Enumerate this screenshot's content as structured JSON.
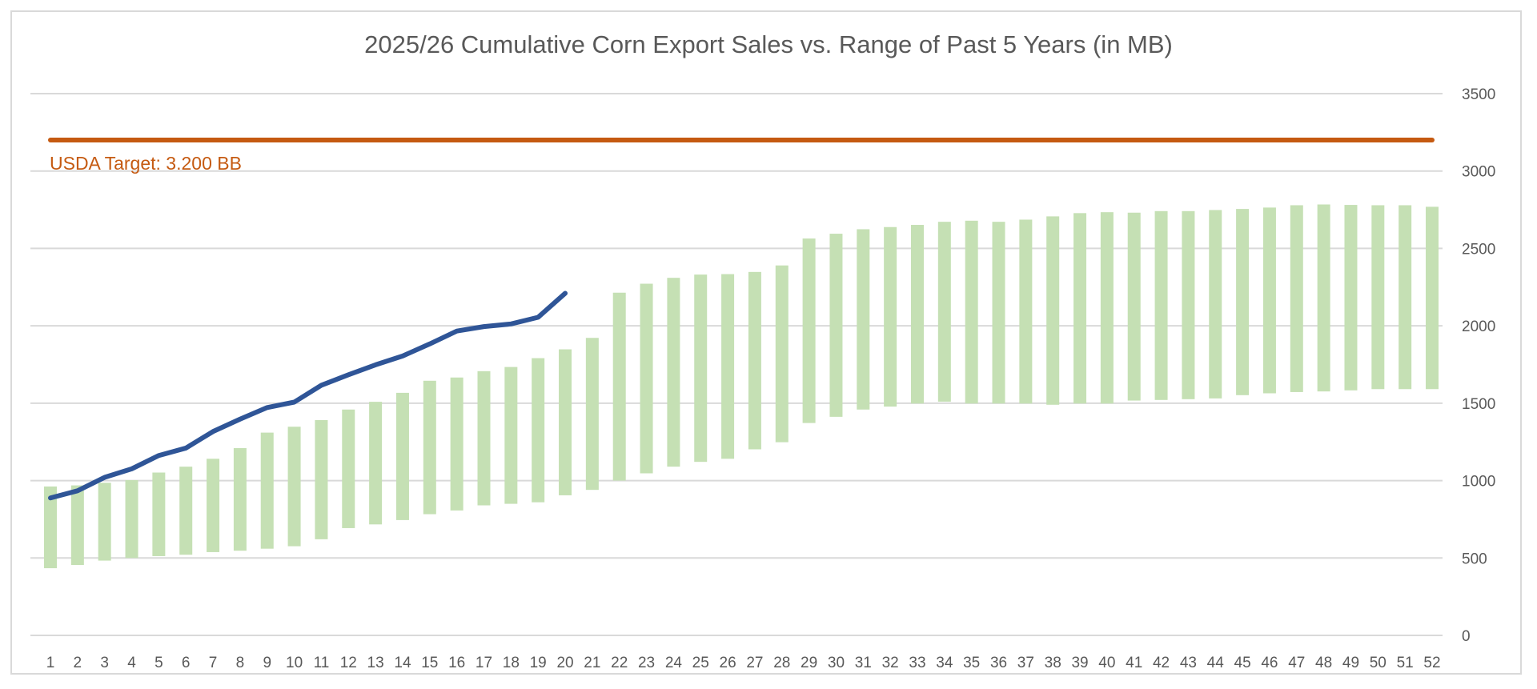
{
  "chart_data": {
    "type": "bar",
    "title": "2025/26 Cumulative Corn Export Sales vs. Range of Past 5 Years (in MB)",
    "xlabel": "",
    "ylabel": "",
    "ylim": [
      0,
      3500
    ],
    "y_ticks": [
      0,
      500,
      1000,
      1500,
      2000,
      2500,
      3000,
      3500
    ],
    "y_axis_side": "right",
    "grid": true,
    "categories": [
      "1",
      "2",
      "3",
      "4",
      "5",
      "6",
      "7",
      "8",
      "9",
      "10",
      "11",
      "12",
      "13",
      "14",
      "15",
      "16",
      "17",
      "18",
      "19",
      "20",
      "21",
      "22",
      "23",
      "24",
      "25",
      "26",
      "27",
      "28",
      "29",
      "30",
      "31",
      "32",
      "33",
      "34",
      "35",
      "36",
      "37",
      "38",
      "39",
      "40",
      "41",
      "42",
      "43",
      "44",
      "45",
      "46",
      "47",
      "48",
      "49",
      "50",
      "51",
      "52"
    ],
    "series": [
      {
        "name": "Range of Past 5 Years",
        "kind": "floating-bar",
        "color": "#C5E0B4",
        "low": [
          434,
          455,
          483,
          500,
          512,
          521,
          538,
          547,
          560,
          576,
          621,
          693,
          717,
          745,
          783,
          807,
          840,
          850,
          860,
          905,
          940,
          1000,
          1047,
          1090,
          1121,
          1141,
          1202,
          1248,
          1372,
          1412,
          1459,
          1478,
          1498,
          1510,
          1498,
          1498,
          1498,
          1490,
          1498,
          1498,
          1517,
          1521,
          1526,
          1531,
          1552,
          1564,
          1572,
          1576,
          1583,
          1591,
          1591,
          1591
        ],
        "high": [
          962,
          969,
          986,
          1003,
          1052,
          1090,
          1141,
          1210,
          1310,
          1348,
          1391,
          1459,
          1509,
          1567,
          1645,
          1666,
          1707,
          1734,
          1791,
          1848,
          1922,
          2214,
          2272,
          2310,
          2331,
          2334,
          2348,
          2390,
          2564,
          2595,
          2624,
          2638,
          2652,
          2672,
          2679,
          2672,
          2686,
          2707,
          2728,
          2734,
          2731,
          2741,
          2741,
          2748,
          2755,
          2764,
          2779,
          2784,
          2781,
          2779,
          2779,
          2769
        ]
      },
      {
        "name": "2025/26 Cumulative Sales",
        "kind": "line",
        "color": "#2F5597",
        "values": [
          888,
          934,
          1021,
          1076,
          1162,
          1210,
          1317,
          1397,
          1472,
          1507,
          1616,
          1684,
          1748,
          1805,
          1883,
          1966,
          1995,
          2012,
          2055,
          2210
        ]
      },
      {
        "name": "USDA Target",
        "kind": "reference-line",
        "color": "#C55A11",
        "value": 3200
      }
    ],
    "annotations": [
      {
        "text": "USDA Target: 3.200 BB",
        "color": "#C55A11",
        "placement": "top-left below target line"
      }
    ],
    "legend": "none"
  }
}
